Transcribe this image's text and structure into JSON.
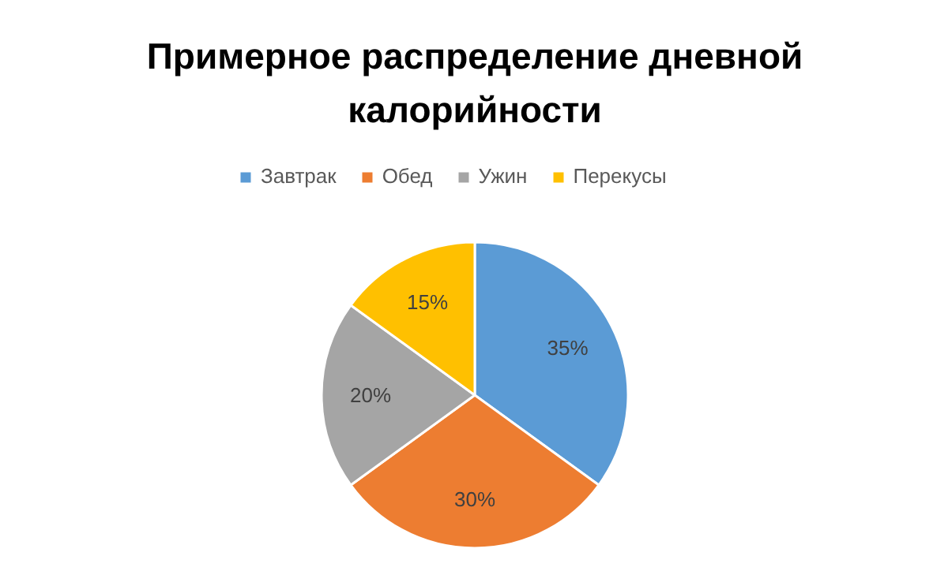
{
  "chart_data": {
    "type": "pie",
    "title": "Примерное распределение дневной калорийности",
    "categories": [
      "Завтрак",
      "Обед",
      "Ужин",
      "Перекусы"
    ],
    "values": [
      35,
      30,
      20,
      15
    ],
    "colors": [
      "#5b9bd5",
      "#ed7d31",
      "#a5a5a5",
      "#ffc000"
    ],
    "value_labels": [
      "35%",
      "30%",
      "20%",
      "15%"
    ],
    "legend": "top"
  }
}
